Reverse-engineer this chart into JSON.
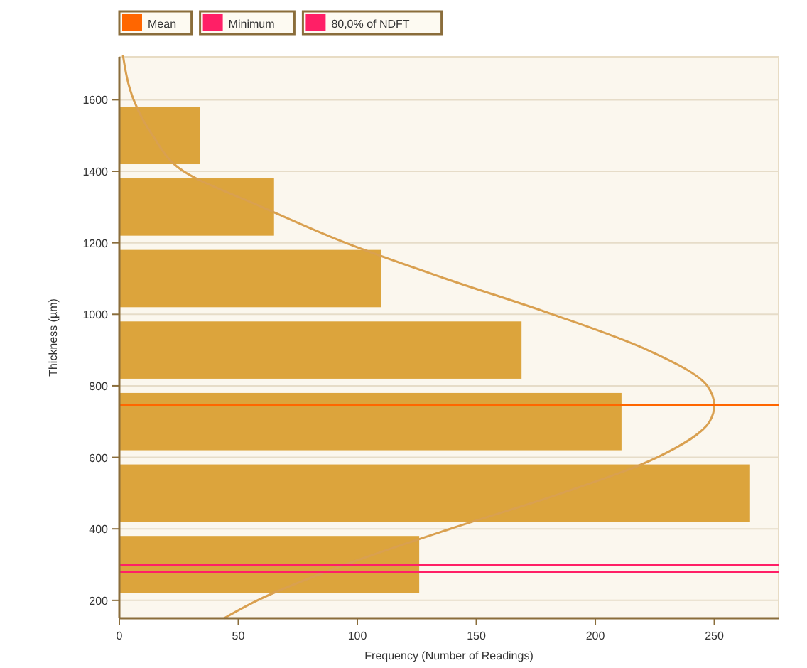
{
  "chart_data": {
    "type": "histogram",
    "orientation": "horizontal",
    "xlabel": "Frequency (Number of Readings)",
    "ylabel": "Thickness (µm)",
    "bins": [
      200,
      400,
      600,
      800,
      1000,
      1200,
      1400,
      1600
    ],
    "values": [
      126,
      265,
      211,
      169,
      110,
      65,
      34
    ],
    "color": "#dca43c",
    "series": [
      {
        "type": "line",
        "color": "#d9a050",
        "x": [
          150,
          200,
          300,
          400,
          500,
          600,
          700,
          745,
          800,
          900,
          1000,
          1100,
          1200,
          1300,
          1400,
          1500,
          1600,
          1725
        ],
        "values": [
          44,
          58,
          95,
          139,
          186,
          226,
          248,
          250,
          247,
          222,
          182,
          137,
          95,
          60,
          27,
          14,
          6,
          1.5
        ]
      }
    ],
    "ref_lines": [
      {
        "axis": "y",
        "value": 745,
        "label": "Mean",
        "color": "#ff6600"
      },
      {
        "axis": "y",
        "value": 300,
        "label": "Minimum",
        "color": "#ff1f66"
      },
      {
        "axis": "y",
        "value": 280,
        "label": "80,0% of NDFT",
        "color": "#ff1f66"
      }
    ],
    "xlim": [
      0,
      277
    ],
    "xticks": [
      0,
      50,
      100,
      150,
      200,
      250
    ],
    "ylim": [
      150,
      1720
    ],
    "yticks": [
      200,
      400,
      600,
      800,
      1000,
      1200,
      1400,
      1600
    ],
    "grid": "y",
    "legend": "top left"
  }
}
